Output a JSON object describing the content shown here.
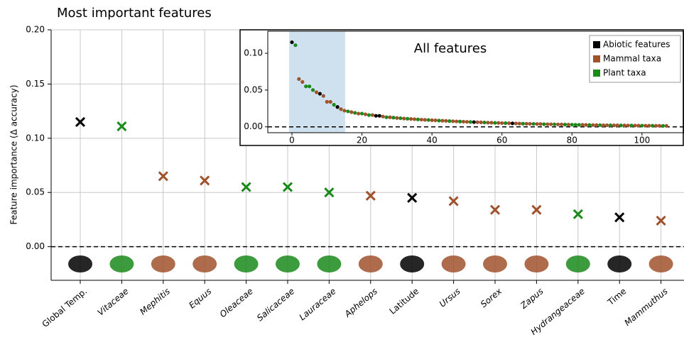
{
  "chart_data": [
    {
      "type": "scatter",
      "title": "Most important features",
      "ylabel": "Feature importance (Δ accuracy)",
      "categories": [
        "Global Temp.",
        "Vitaceae",
        "Mephitis",
        "Equus",
        "Oleaceae",
        "Salicaceae",
        "Lauraceae",
        "Aphelops",
        "Latitude",
        "Ursus",
        "Sorex",
        "Zapus",
        "Hydrangeaceae",
        "Time",
        "Mammuthus"
      ],
      "values": [
        0.115,
        0.111,
        0.065,
        0.061,
        0.055,
        0.055,
        0.05,
        0.047,
        0.045,
        0.042,
        0.034,
        0.034,
        0.03,
        0.027,
        0.024
      ],
      "colors": [
        "#000000",
        "#1a8a1a",
        "#a0522d",
        "#a0522d",
        "#1a8a1a",
        "#1a8a1a",
        "#1a8a1a",
        "#a0522d",
        "#000000",
        "#a0522d",
        "#a0522d",
        "#a0522d",
        "#1a8a1a",
        "#000000",
        "#a0522d"
      ],
      "italic_labels": [
        false,
        true,
        true,
        true,
        true,
        true,
        true,
        true,
        false,
        true,
        true,
        true,
        true,
        false,
        true
      ],
      "marker": "x",
      "ylim": [
        -0.031,
        0.2
      ],
      "yticks": [
        {
          "value": 0,
          "label": "0.00"
        },
        {
          "value": 0.05,
          "label": "0.05"
        },
        {
          "value": 0.1,
          "label": "0.10"
        },
        {
          "value": 0.15,
          "label": "0.15"
        },
        {
          "value": 0.2,
          "label": "0.20"
        }
      ],
      "grid": true,
      "zero_line": true
    },
    {
      "type": "scatter",
      "title": "All features",
      "xlim": [
        -6.9,
        112
      ],
      "ylim": [
        -0.008,
        0.13
      ],
      "xticks": [
        0,
        20,
        40,
        60,
        80,
        100
      ],
      "yticks": [
        {
          "value": 0,
          "label": "0.00"
        },
        {
          "value": 0.05,
          "label": "0.05"
        },
        {
          "value": 0.1,
          "label": "0.10"
        }
      ],
      "shaded_xrange": [
        -0.8,
        15.2
      ],
      "zero_line": true,
      "legend": "upper right",
      "series": [
        {
          "name": "Abiotic features",
          "color": "#000000",
          "x": [
            0,
            8,
            13,
            24,
            25,
            52,
            63
          ],
          "values": [
            0.115,
            0.045,
            0.027,
            0.015,
            0.015,
            0.0064,
            0.0047
          ]
        },
        {
          "name": "Mammal taxa",
          "color": "#a0522d",
          "x": [
            2,
            3,
            7,
            9,
            10,
            11,
            14,
            15,
            17,
            19,
            21,
            23,
            26,
            28,
            30,
            32,
            34,
            35,
            37,
            38,
            40,
            41,
            43,
            44,
            46,
            47,
            49,
            50,
            53,
            54,
            56,
            57,
            59,
            60,
            62,
            64,
            65,
            67,
            68,
            70,
            71,
            73,
            74,
            76,
            77,
            79,
            83,
            84,
            86,
            87,
            89,
            90,
            92,
            93,
            95,
            96,
            98,
            99,
            101,
            102,
            104,
            105,
            107
          ],
          "values": [
            0.065,
            0.061,
            0.047,
            0.042,
            0.034,
            0.034,
            0.024,
            0.022,
            0.02,
            0.018,
            0.017,
            0.016,
            0.014,
            0.013,
            0.012,
            0.0113,
            0.0107,
            0.0104,
            0.0098,
            0.0095,
            0.009,
            0.0088,
            0.0083,
            0.0081,
            0.0076,
            0.0074,
            0.007,
            0.0068,
            0.0063,
            0.0061,
            0.0057,
            0.0056,
            0.0053,
            0.0051,
            0.0049,
            0.0046,
            0.0044,
            0.0042,
            0.0041,
            0.0039,
            0.0038,
            0.0035,
            0.0035,
            0.0033,
            0.0032,
            0.003,
            0.0027,
            0.0026,
            0.0024,
            0.0024,
            0.0022,
            0.0022,
            0.002,
            0.002,
            0.0019,
            0.0018,
            0.0017,
            0.0017,
            0.0016,
            0.0015,
            0.0014,
            0.0014,
            0.0013
          ]
        },
        {
          "name": "Plant taxa",
          "color": "#1a8a1a",
          "x": [
            1,
            4,
            5,
            6,
            12,
            16,
            18,
            20,
            22,
            27,
            29,
            31,
            33,
            36,
            39,
            42,
            45,
            48,
            51,
            55,
            58,
            61,
            66,
            69,
            72,
            75,
            78,
            80,
            81,
            82,
            85,
            88,
            91,
            94,
            97,
            100,
            103,
            106
          ],
          "values": [
            0.111,
            0.055,
            0.055,
            0.05,
            0.03,
            0.021,
            0.019,
            0.018,
            0.016,
            0.013,
            0.0125,
            0.0117,
            0.011,
            0.0101,
            0.0093,
            0.0085,
            0.0078,
            0.0072,
            0.0066,
            0.0059,
            0.0054,
            0.005,
            0.0043,
            0.004,
            0.0036,
            0.0034,
            0.0031,
            0.0029,
            0.0028,
            0.0027,
            0.0025,
            0.0023,
            0.0021,
            0.0019,
            0.0018,
            0.0016,
            0.0015,
            0.0013
          ]
        }
      ]
    }
  ]
}
